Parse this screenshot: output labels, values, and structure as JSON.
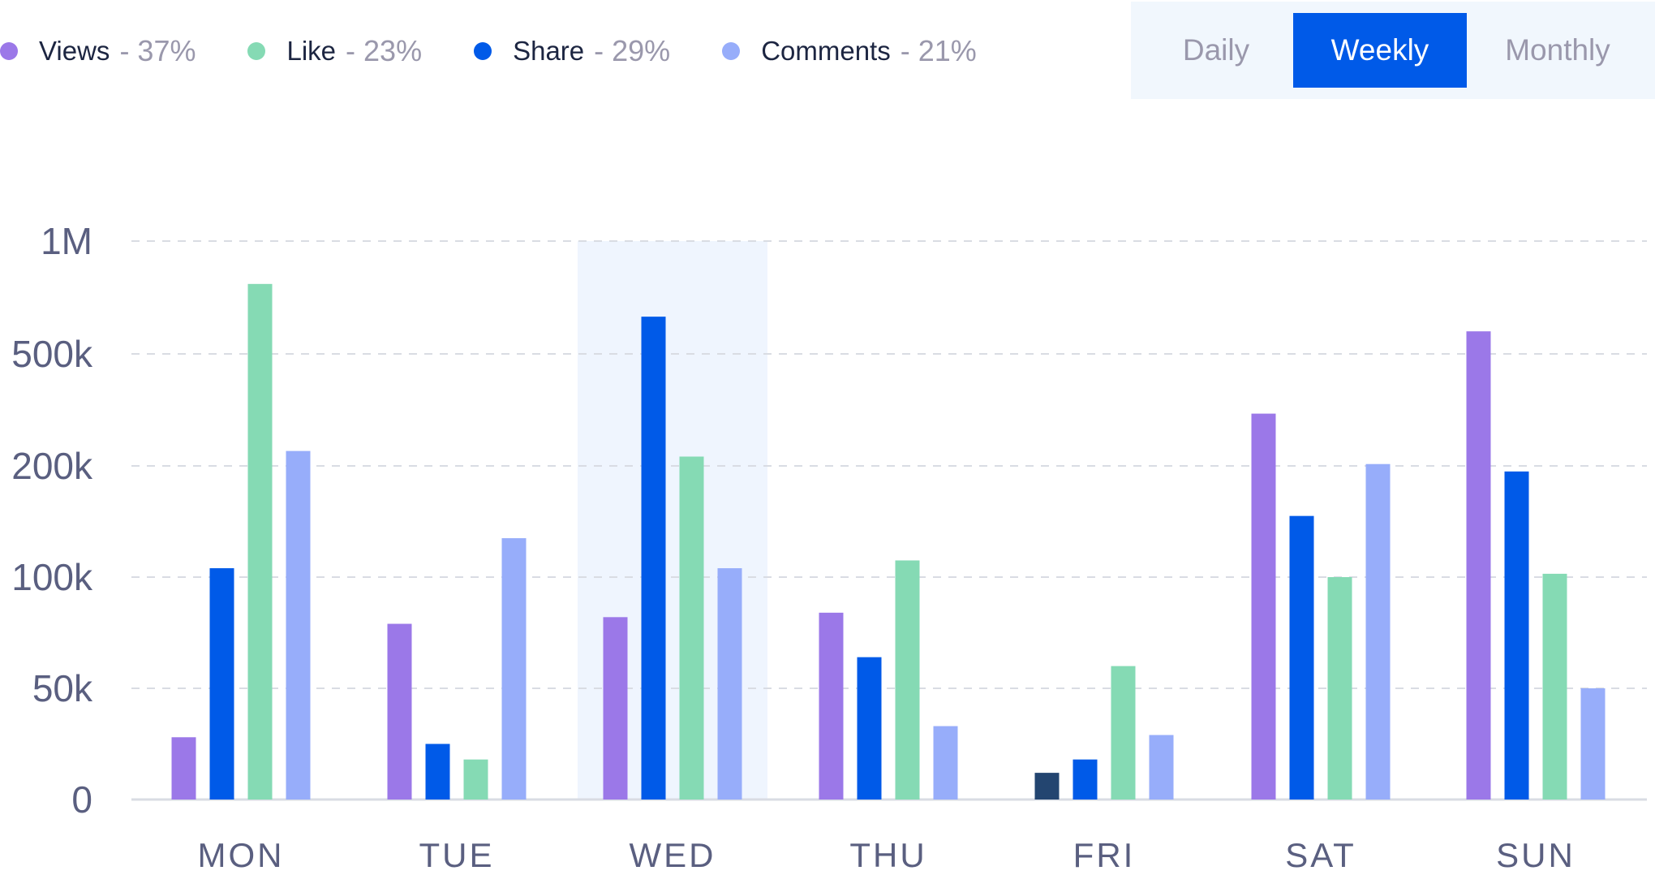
{
  "legend": {
    "items": [
      {
        "name": "Views",
        "pct": "- 37%",
        "color": "#9b78e8"
      },
      {
        "name": "Like",
        "pct": "- 23%",
        "color": "#85dab4"
      },
      {
        "name": "Share",
        "pct": "- 29%",
        "color": "#005ae8"
      },
      {
        "name": "Comments",
        "pct": "- 21%",
        "color": "#97adfa"
      }
    ]
  },
  "tabs": {
    "daily": "Daily",
    "weekly": "Weekly",
    "monthly": "Monthly",
    "active": "weekly"
  },
  "chart_data": {
    "type": "bar",
    "categories": [
      "MON",
      "TUE",
      "WED",
      "THU",
      "FRI",
      "SAT",
      "SUN"
    ],
    "highlighted_category": "WED",
    "y_scale": "non-linear",
    "y_ticks": [
      0,
      50000,
      100000,
      200000,
      500000,
      1000000
    ],
    "y_tick_labels": [
      "0",
      "50k",
      "100k",
      "200k",
      "500k",
      "1M"
    ],
    "ylim": [
      0,
      1000000
    ],
    "grid": true,
    "legend_position": "top-left",
    "series": [
      {
        "name": "Views",
        "color": "#9b78e8",
        "values": [
          28000,
          79000,
          82000,
          84000,
          12000,
          340000,
          600000
        ]
      },
      {
        "name": "Share",
        "color": "#005ae8",
        "values": [
          108000,
          25000,
          665000,
          64000,
          18000,
          155000,
          195000
        ]
      },
      {
        "name": "Like",
        "color": "#85dab4",
        "values": [
          810000,
          18000,
          225000,
          115000,
          60000,
          100000,
          103000
        ]
      },
      {
        "name": "Comments",
        "color": "#97adfa",
        "values": [
          240000,
          135000,
          108000,
          33000,
          29000,
          205000,
          50000
        ]
      }
    ],
    "special_bar_colors": [
      {
        "category": "FRI",
        "series": "Views",
        "color": "#234570"
      }
    ]
  }
}
